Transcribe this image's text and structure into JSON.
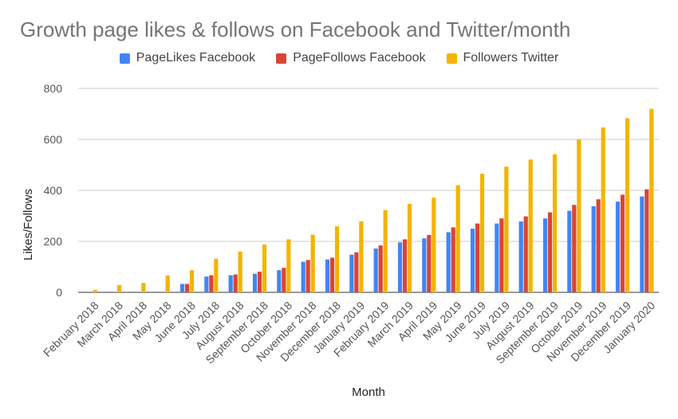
{
  "chart_data": {
    "type": "bar",
    "title": "Growth page likes & follows on Facebook and Twitter/month",
    "xlabel": "Month",
    "ylabel": "Likes/Follows",
    "ylim": [
      0,
      800
    ],
    "yticks": [
      0,
      200,
      400,
      600,
      800
    ],
    "grid": true,
    "legend_position": "top",
    "categories": [
      "February 2018",
      "March 2018",
      "April 2018",
      "May 2018",
      "June 2018",
      "July 2018",
      "August 2018",
      "September 2018",
      "October 2018",
      "November 2018",
      "December 2018",
      "January 2019",
      "February 2019",
      "March 2019",
      "April 2019",
      "May 2019",
      "June 2019",
      "July 2019",
      "August 2019",
      "September 2019",
      "October 2019",
      "November 2019",
      "December 2019",
      "January 2020"
    ],
    "series": [
      {
        "name": "PageLikes Facebook",
        "color": "#4285f4",
        "values": [
          0,
          0,
          0,
          0,
          33,
          62,
          67,
          73,
          87,
          120,
          129,
          148,
          172,
          196,
          212,
          236,
          250,
          270,
          278,
          290,
          320,
          338,
          356,
          376
        ]
      },
      {
        "name": "PageFollows Facebook",
        "color": "#db4437",
        "values": [
          0,
          0,
          0,
          0,
          33,
          67,
          70,
          81,
          96,
          127,
          136,
          157,
          184,
          208,
          225,
          255,
          270,
          290,
          298,
          314,
          343,
          365,
          383,
          404
        ]
      },
      {
        "name": "Followers Twitter",
        "color": "#f4b400",
        "values": [
          10,
          29,
          37,
          66,
          87,
          132,
          160,
          188,
          208,
          226,
          259,
          279,
          323,
          347,
          371,
          420,
          465,
          493,
          521,
          542,
          601,
          647,
          683,
          720
        ]
      }
    ]
  }
}
